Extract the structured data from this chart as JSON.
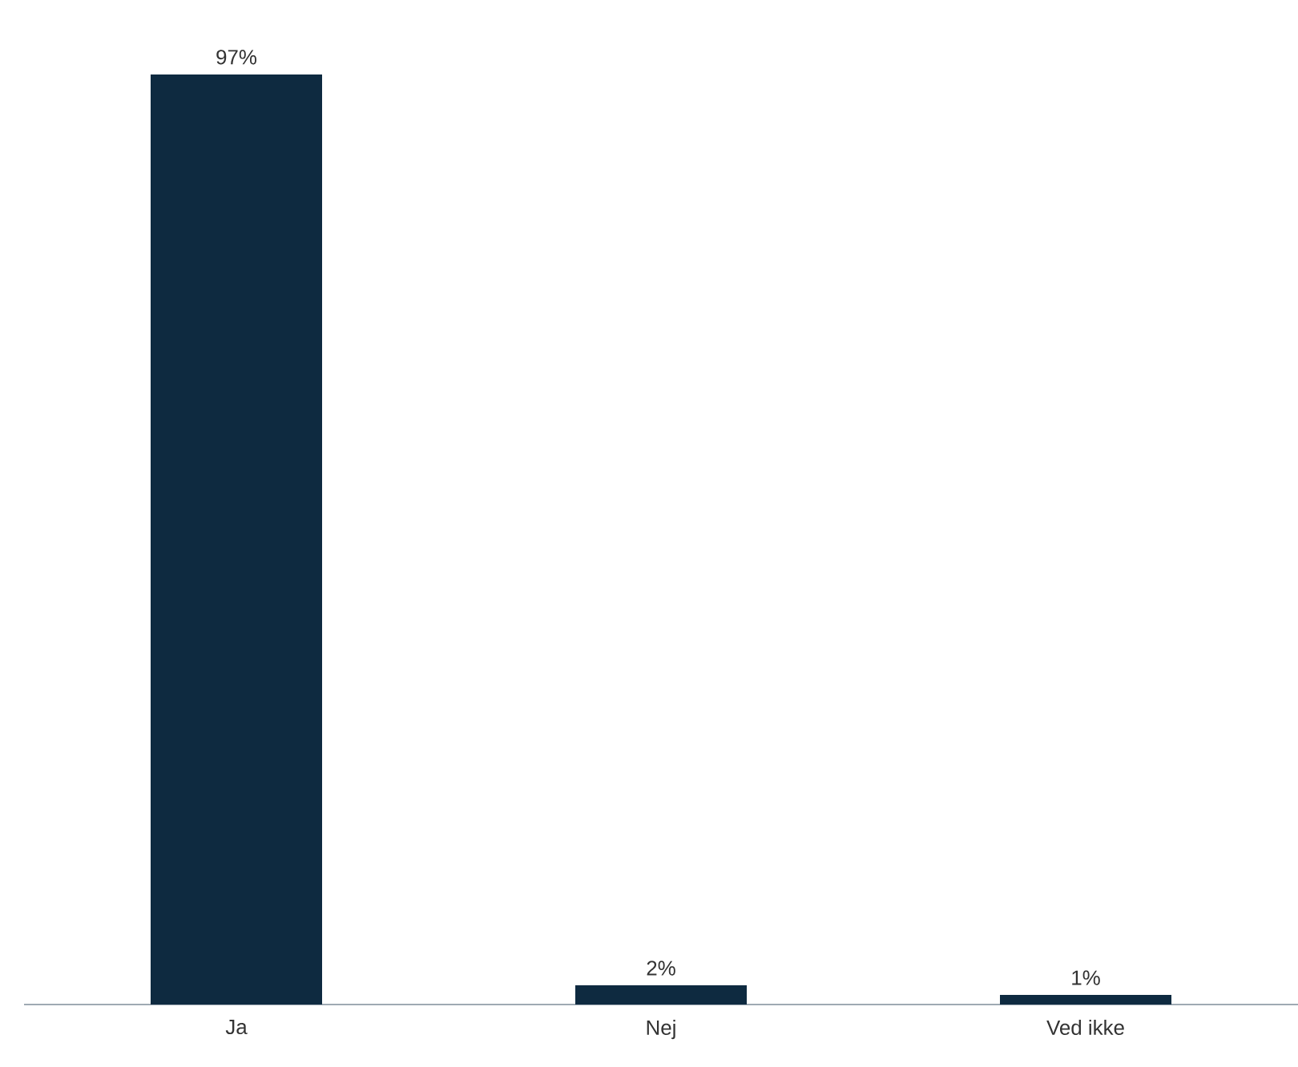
{
  "chart_data": {
    "type": "bar",
    "categories": [
      "Ja",
      "Nej",
      "Ved ikke"
    ],
    "values": [
      97,
      2,
      1
    ],
    "value_labels": [
      "97%",
      "2%",
      "1%"
    ],
    "color": "#0e2a40"
  }
}
